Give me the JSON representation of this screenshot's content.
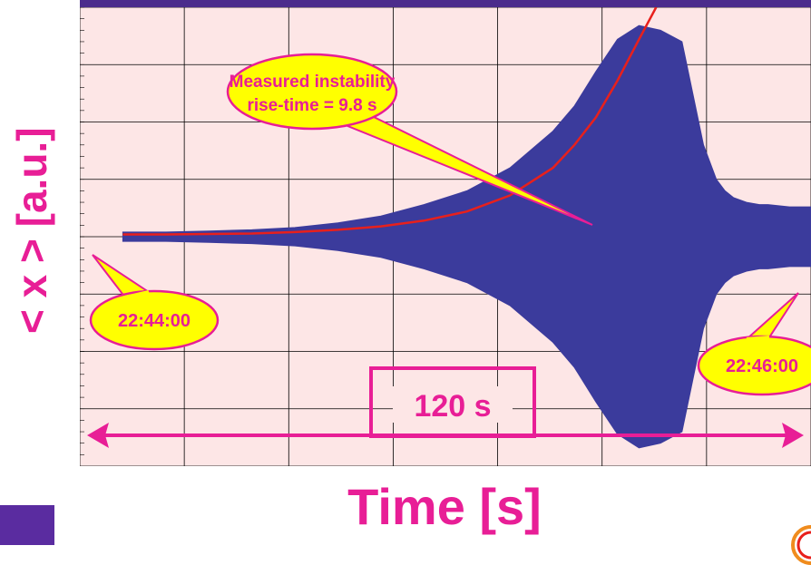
{
  "chart_data": {
    "type": "line",
    "title": "",
    "xlabel": "Time [s]",
    "ylabel": "< x > [a.u.]",
    "xlim": [
      -10,
      160
    ],
    "ylim": [
      -1.0,
      1.0
    ],
    "grid": true,
    "series": [
      {
        "name": "",
        "kind": "envelope",
        "color": "#3b3b9c",
        "x": [
          0,
          10,
          20,
          30,
          40,
          50,
          60,
          70,
          80,
          90,
          100,
          105,
          110,
          115,
          120,
          125,
          130,
          135,
          138,
          140,
          142,
          145,
          148,
          150,
          155,
          160
        ],
        "upper": [
          0.02,
          0.02,
          0.025,
          0.03,
          0.04,
          0.06,
          0.09,
          0.14,
          0.2,
          0.3,
          0.46,
          0.57,
          0.72,
          0.86,
          0.92,
          0.9,
          0.85,
          0.4,
          0.25,
          0.2,
          0.17,
          0.15,
          0.14,
          0.14,
          0.13,
          0.13
        ],
        "lower": [
          -0.02,
          -0.02,
          -0.025,
          -0.03,
          -0.04,
          -0.06,
          -0.09,
          -0.14,
          -0.2,
          -0.3,
          -0.46,
          -0.57,
          -0.72,
          -0.86,
          -0.92,
          -0.9,
          -0.85,
          -0.4,
          -0.25,
          -0.2,
          -0.17,
          -0.15,
          -0.14,
          -0.14,
          -0.13,
          -0.13
        ]
      },
      {
        "name": "",
        "kind": "fit",
        "color": "#e8201c",
        "x": [
          0,
          10,
          20,
          30,
          40,
          50,
          60,
          70,
          80,
          90,
          100,
          105,
          110,
          115,
          120,
          124
        ],
        "y": [
          0.01,
          0.01,
          0.012,
          0.014,
          0.02,
          0.03,
          0.045,
          0.07,
          0.11,
          0.18,
          0.3,
          0.4,
          0.52,
          0.68,
          0.86,
          1.0
        ]
      }
    ],
    "annotations": [
      {
        "id": "rise-time",
        "lines": [
          "Measured instability",
          "rise-time = 9.8 s"
        ]
      },
      {
        "id": "start-time",
        "text": "22:44:00"
      },
      {
        "id": "end-time",
        "text": "22:46:00"
      },
      {
        "id": "duration",
        "text": "120 s"
      }
    ],
    "colors": {
      "plot_bg": "#fde6e6",
      "accent": "#e81e96",
      "callout_fill": "#ffff00",
      "callout_text": "#e81e96",
      "envelope": "#3b3b9c",
      "fit": "#e8201c",
      "grid": "#000000",
      "topbar": "#4b2c8c"
    }
  }
}
